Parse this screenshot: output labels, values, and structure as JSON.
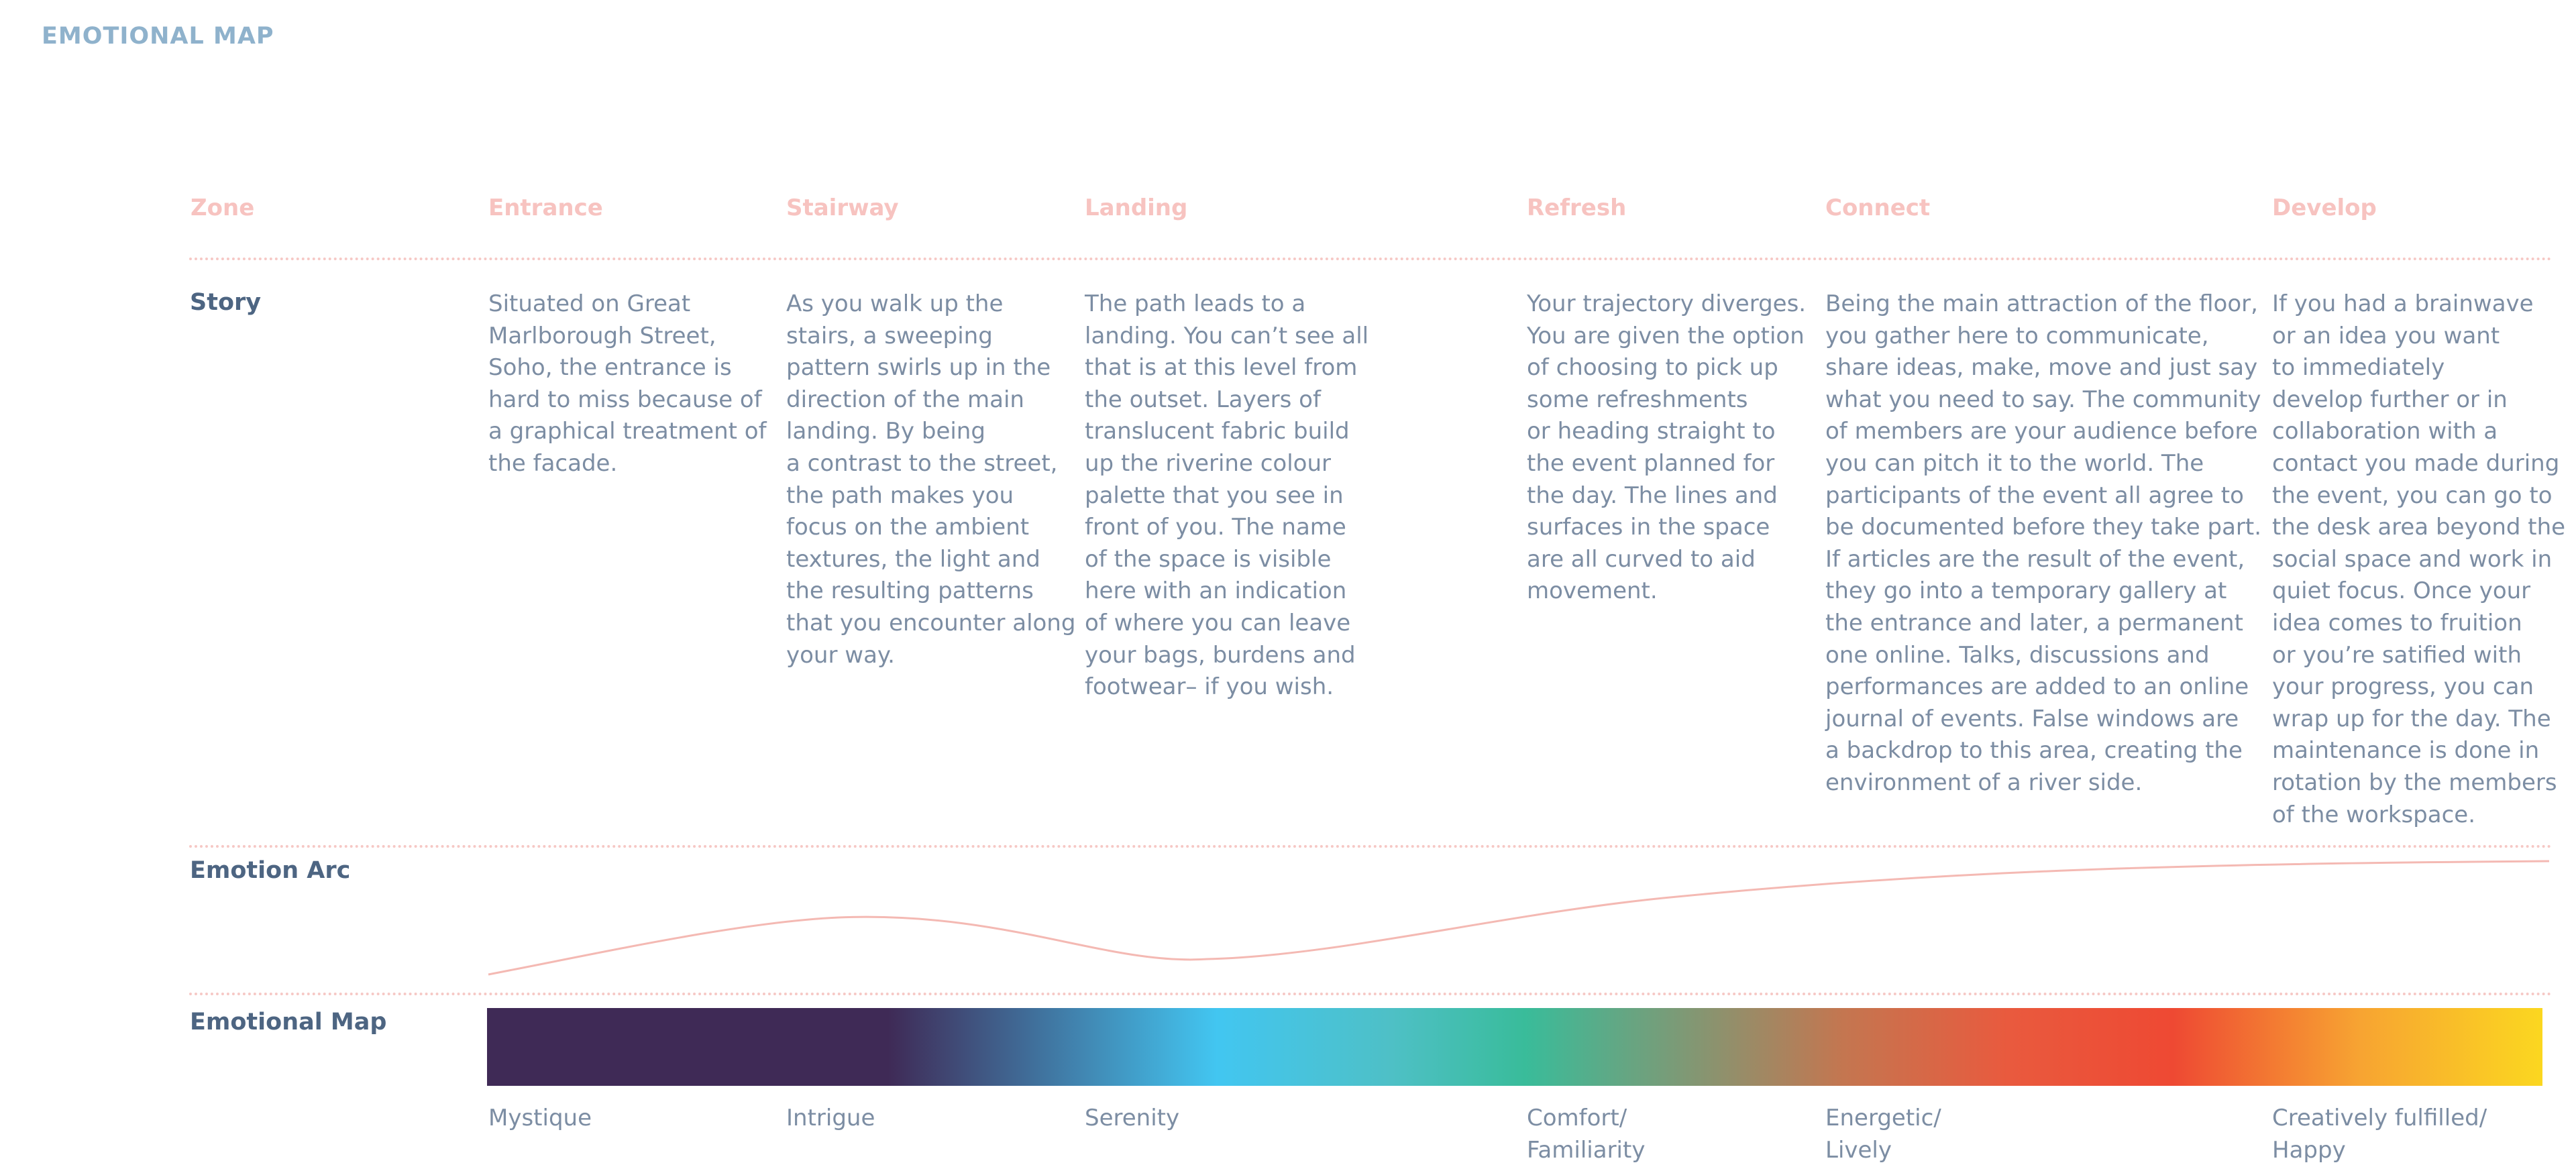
{
  "page": {
    "title": "EMOTIONAL MAP"
  },
  "zones": {
    "label": "Zone",
    "items": [
      "Entrance",
      "Stairway",
      "Landing",
      "Refresh",
      "Connect",
      "Develop"
    ]
  },
  "story": {
    "label": "Story",
    "items": [
      "Situated on Great\nMarlborough Street,\nSoho, the entrance is\nhard to miss because of\na graphical treatment of\nthe facade.",
      "As you walk up the\nstairs, a sweeping\npattern swirls up in the\ndirection of the main\nlanding. By being\na contrast to the street,\nthe path makes you\nfocus on the ambient\ntextures, the light and\nthe resulting patterns\nthat you encounter along\nyour way.",
      "The path leads to a\nlanding. You can’t see all\nthat is at this level from\nthe outset. Layers of\ntranslucent fabric build\nup the riverine colour\npalette that you see in\nfront of you. The name\nof the space is visible\nhere with an indication\nof where you can leave\nyour bags, burdens and\nfootwear– if you wish.",
      "Your trajectory diverges.\nYou are given the option\nof choosing to pick up\nsome refreshments\nor heading straight to\nthe event planned for\nthe day. The lines and\nsurfaces in the space\nare all curved to aid\nmovement.",
      "Being the main attraction of the floor,\nyou gather here to communicate,\nshare ideas, make, move and just say\nwhat you need to say. The community\nof members are your audience before\nyou can pitch it to the world. The\nparticipants of the event all agree to\nbe documented before they take part.\nIf articles are the result of the event,\nthey go into a temporary gallery at\nthe entrance and later, a permanent\none online. Talks, discussions and\nperformances are added to an online\njournal of events. False windows are\na backdrop to this area, creating the\nenvironment of a river side.",
      "If you had a brainwave\nor an idea you want\nto immediately\ndevelop further or in\ncollaboration with a\ncontact you made during\nthe event, you can go to\nthe desk area beyond the\nsocial space and work in\nquiet focus. Once your\nidea comes to fruition\nor you’re satified with\nyour progress, you can\nwrap up for the day. The\nmaintenance is done in\nrotation by the members\nof the workspace."
    ]
  },
  "emotion_arc": {
    "label": "Emotion Arc",
    "line_color": "#f4b9b3"
  },
  "emotional_map": {
    "label": "Emotional Map",
    "states": [
      "Mystique",
      "Intrigue",
      "Serenity",
      "Comfort/\nFamiliarity",
      "Energetic/\nLively",
      "Creatively fulfilled/\nHappy"
    ],
    "gradient_colors": [
      "#3f2a56",
      "#3f2a56",
      "#42c6f1",
      "#4ec0c6",
      "#39bc9a",
      "#c47650",
      "#e95a3e",
      "#ee4933",
      "#f7a332",
      "#fbd720"
    ]
  },
  "colors": {
    "title": "#8fb2cc",
    "zone_text": "#f7c3c0",
    "row_label": "#4d6582",
    "body_text": "#7c8da3",
    "divider": "#f6c8c5"
  }
}
